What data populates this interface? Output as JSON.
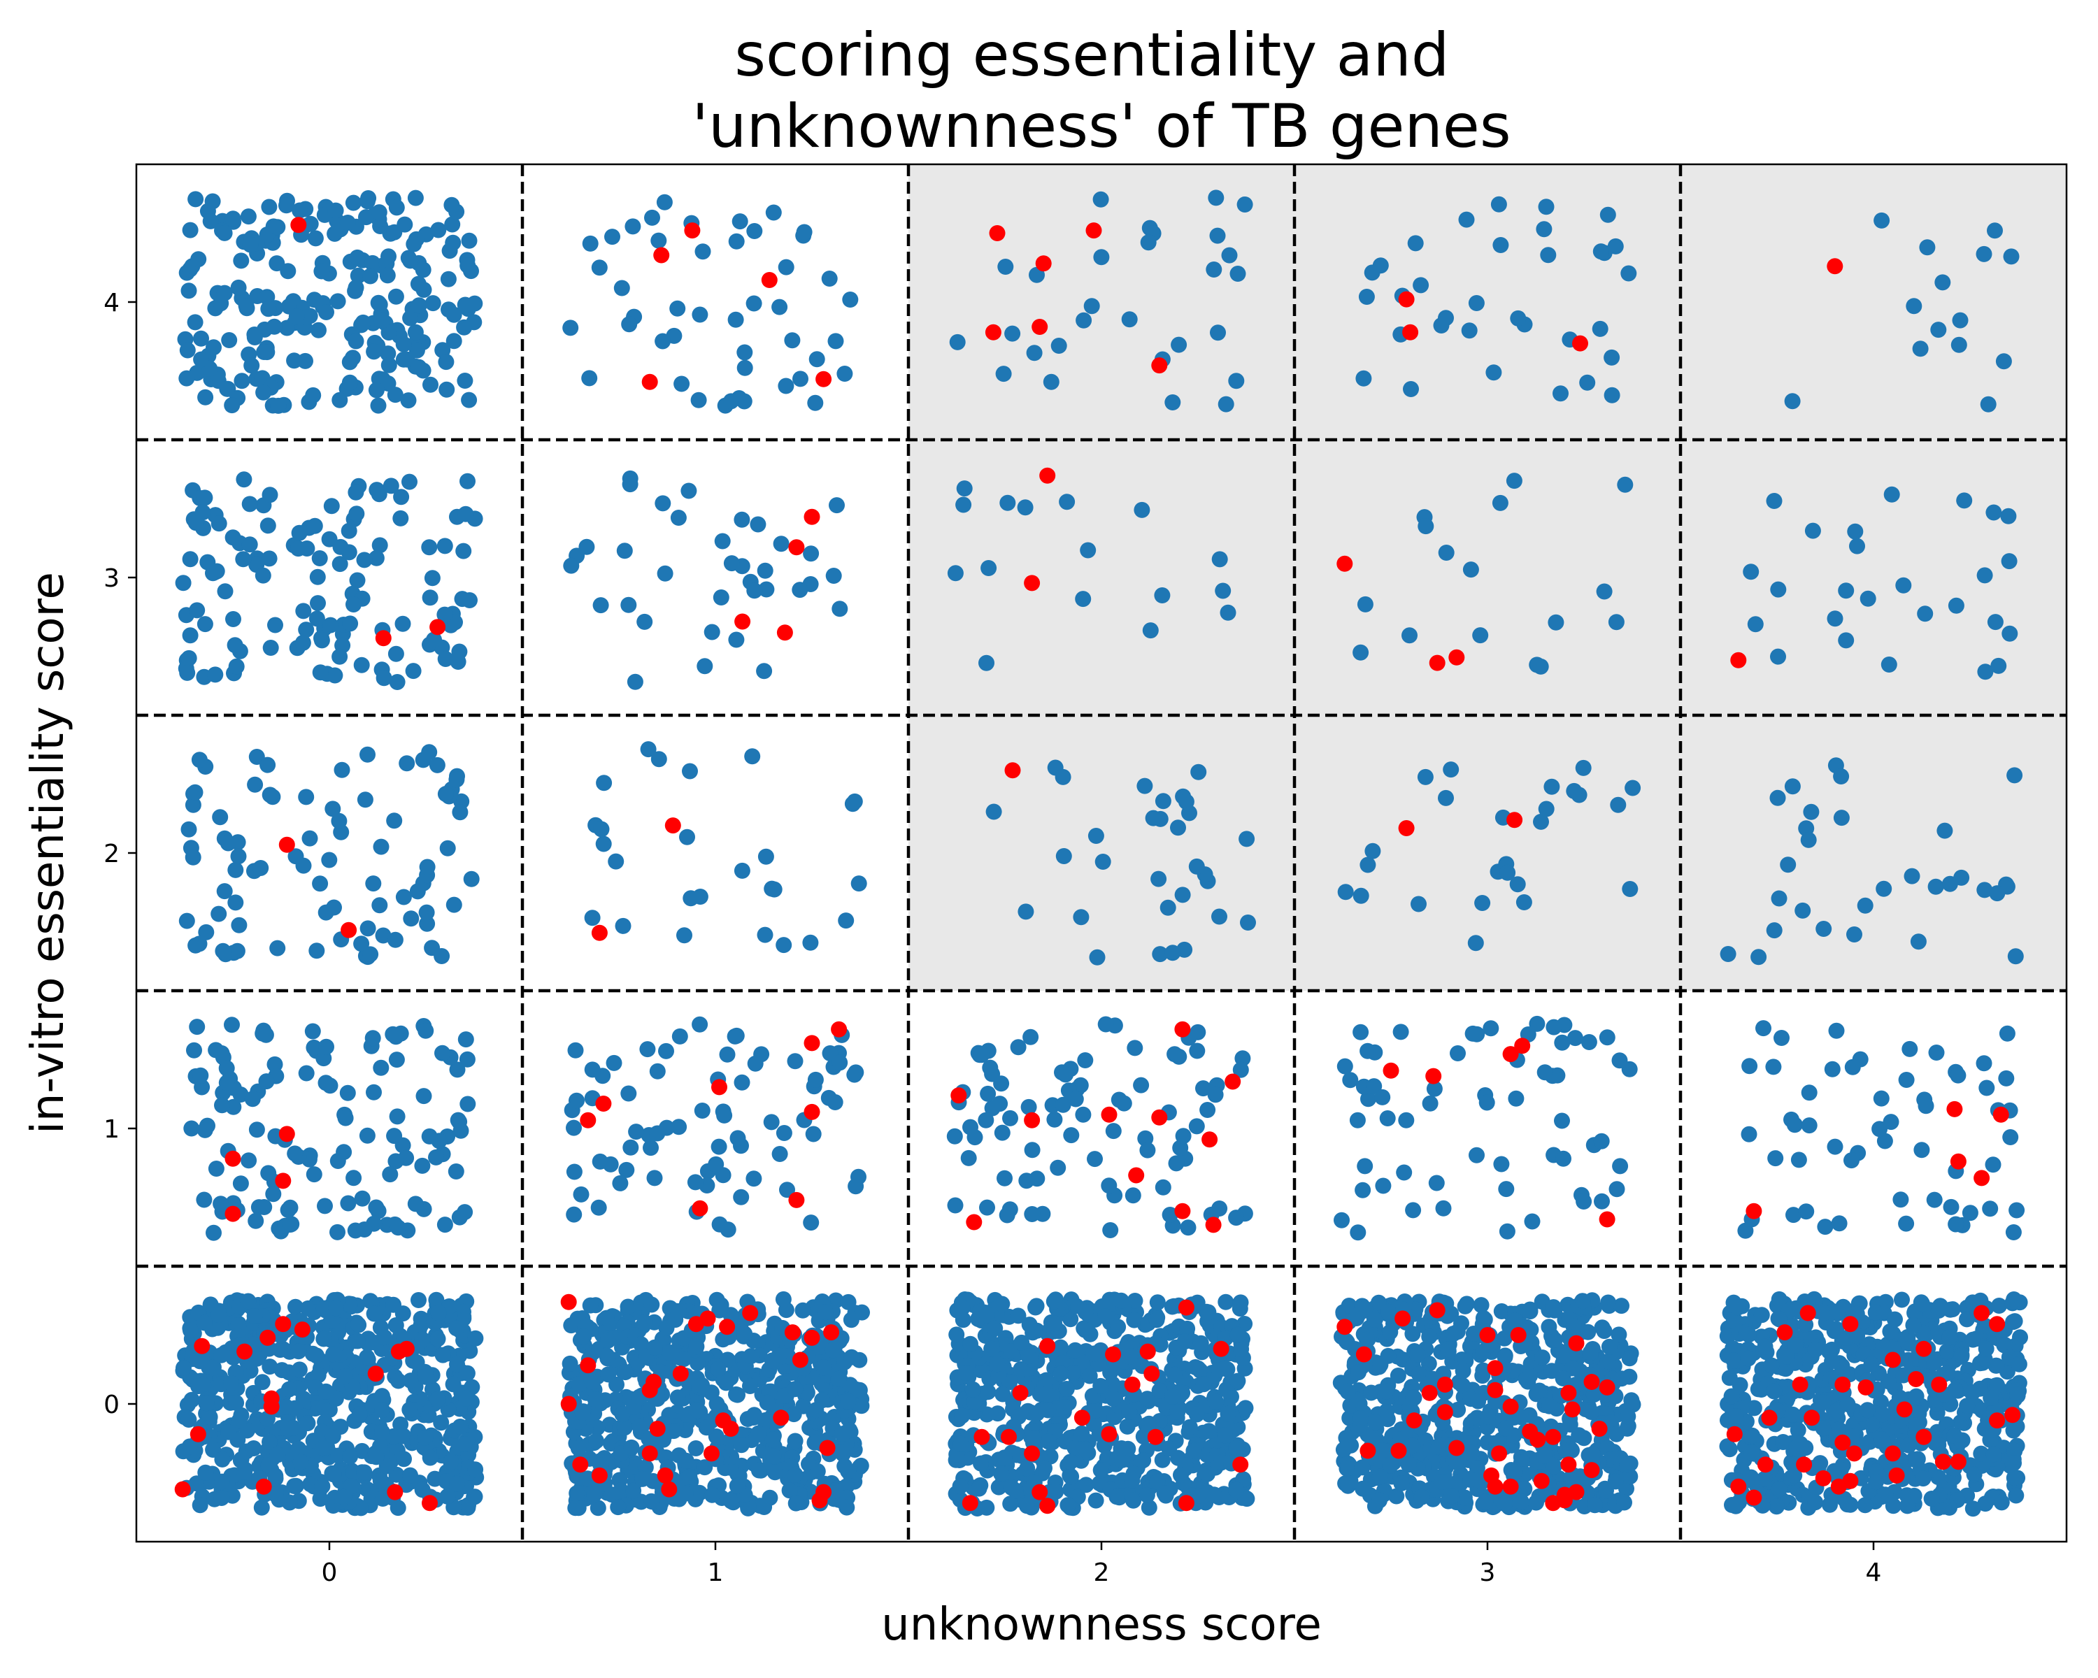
{
  "chart_data": {
    "type": "scatter",
    "title": "scoring essentiality and\n'unknownness' of TB genes",
    "title_lines": [
      "scoring essentiality and",
      "'unknownness' of TB genes"
    ],
    "xlabel": "unknownness score",
    "ylabel": "in-vitro essentiality score",
    "xlim": [
      -0.5,
      4.5
    ],
    "ylim": [
      -0.5,
      4.5
    ],
    "xticks": [
      0,
      1,
      2,
      3,
      4
    ],
    "yticks": [
      0,
      1,
      2,
      3,
      4
    ],
    "grid": false,
    "legend": "none",
    "separators": {
      "x": [
        0.5,
        1.5,
        2.5,
        3.5
      ],
      "y": [
        0.5,
        1.5,
        2.5,
        3.5
      ],
      "style": "dashed",
      "color": "#000000"
    },
    "shaded_region": {
      "x": [
        1.5,
        4.5
      ],
      "y": [
        1.5,
        4.5
      ],
      "color": "#e8e8e8"
    },
    "jitter": 0.38,
    "colors": {
      "default": "#1f77b4",
      "highlight": "#ff0000"
    },
    "cells": [
      {
        "x": 0,
        "y": 4,
        "n": 230,
        "highlight": [
          [
            -0.08,
            4.28
          ]
        ]
      },
      {
        "x": 1,
        "y": 4,
        "n": 45,
        "highlight": [
          [
            0.94,
            4.26
          ],
          [
            0.86,
            4.17
          ],
          [
            1.14,
            4.08
          ],
          [
            0.83,
            3.71
          ],
          [
            1.28,
            3.72
          ]
        ]
      },
      {
        "x": 2,
        "y": 4,
        "n": 28,
        "highlight": [
          [
            1.73,
            4.25
          ],
          [
            1.98,
            4.26
          ],
          [
            1.85,
            4.14
          ],
          [
            1.72,
            3.89
          ],
          [
            1.84,
            3.91
          ],
          [
            2.15,
            3.77
          ]
        ]
      },
      {
        "x": 3,
        "y": 4,
        "n": 33,
        "highlight": [
          [
            2.79,
            4.01
          ],
          [
            2.8,
            3.89
          ],
          [
            3.24,
            3.85
          ]
        ]
      },
      {
        "x": 4,
        "y": 4,
        "n": 14,
        "highlight": [
          [
            3.9,
            4.13
          ]
        ]
      },
      {
        "x": 0,
        "y": 3,
        "n": 125,
        "highlight": [
          [
            0.14,
            2.78
          ],
          [
            0.28,
            2.82
          ]
        ]
      },
      {
        "x": 1,
        "y": 3,
        "n": 35,
        "highlight": [
          [
            1.25,
            3.22
          ],
          [
            1.21,
            3.11
          ],
          [
            1.07,
            2.84
          ],
          [
            1.18,
            2.8
          ]
        ]
      },
      {
        "x": 2,
        "y": 3,
        "n": 16,
        "highlight": [
          [
            1.86,
            3.37
          ],
          [
            1.82,
            2.98
          ]
        ]
      },
      {
        "x": 3,
        "y": 3,
        "n": 16,
        "highlight": [
          [
            2.63,
            3.05
          ],
          [
            2.87,
            2.69
          ],
          [
            2.92,
            2.71
          ]
        ]
      },
      {
        "x": 4,
        "y": 3,
        "n": 26,
        "highlight": [
          [
            3.65,
            2.7
          ]
        ]
      },
      {
        "x": 0,
        "y": 2,
        "n": 85,
        "highlight": [
          [
            -0.11,
            2.03
          ],
          [
            0.05,
            1.72
          ]
        ]
      },
      {
        "x": 1,
        "y": 2,
        "n": 26,
        "highlight": [
          [
            0.89,
            2.1
          ],
          [
            0.7,
            1.71
          ]
        ]
      },
      {
        "x": 2,
        "y": 2,
        "n": 30,
        "highlight": [
          [
            1.77,
            2.3
          ]
        ]
      },
      {
        "x": 3,
        "y": 2,
        "n": 25,
        "highlight": [
          [
            2.79,
            2.09
          ],
          [
            3.07,
            2.12
          ]
        ]
      },
      {
        "x": 4,
        "y": 2,
        "n": 30,
        "highlight": []
      },
      {
        "x": 0,
        "y": 1,
        "n": 125,
        "highlight": [
          [
            -0.25,
            0.89
          ],
          [
            -0.11,
            0.98
          ],
          [
            -0.12,
            0.81
          ],
          [
            -0.25,
            0.69
          ]
        ]
      },
      {
        "x": 1,
        "y": 1,
        "n": 75,
        "highlight": [
          [
            1.32,
            1.36
          ],
          [
            1.25,
            1.31
          ],
          [
            1.01,
            1.15
          ],
          [
            0.71,
            1.09
          ],
          [
            0.67,
            1.03
          ],
          [
            1.25,
            1.06
          ],
          [
            1.21,
            0.74
          ],
          [
            0.96,
            0.71
          ]
        ]
      },
      {
        "x": 2,
        "y": 1,
        "n": 85,
        "highlight": [
          [
            2.21,
            1.36
          ],
          [
            2.34,
            1.17
          ],
          [
            1.63,
            1.12
          ],
          [
            1.82,
            1.03
          ],
          [
            2.02,
            1.05
          ],
          [
            2.15,
            1.04
          ],
          [
            2.28,
            0.96
          ],
          [
            2.09,
            0.83
          ],
          [
            2.21,
            0.7
          ],
          [
            1.67,
            0.66
          ],
          [
            2.29,
            0.65
          ]
        ]
      },
      {
        "x": 3,
        "y": 1,
        "n": 60,
        "highlight": [
          [
            3.09,
            1.3
          ],
          [
            3.06,
            1.27
          ],
          [
            2.75,
            1.21
          ],
          [
            2.86,
            1.19
          ],
          [
            3.31,
            0.67
          ]
        ]
      },
      {
        "x": 4,
        "y": 1,
        "n": 55,
        "highlight": [
          [
            4.21,
            1.07
          ],
          [
            4.33,
            1.05
          ],
          [
            4.22,
            0.88
          ],
          [
            4.28,
            0.82
          ],
          [
            3.69,
            0.7
          ]
        ]
      },
      {
        "x": 0,
        "y": 0,
        "n": 600,
        "highlight": [
          [
            -0.33,
            0.21
          ],
          [
            -0.22,
            0.19
          ],
          [
            -0.16,
            0.24
          ],
          [
            -0.12,
            0.29
          ],
          [
            -0.07,
            0.27
          ],
          [
            0.18,
            0.19
          ],
          [
            0.2,
            0.2
          ],
          [
            0.12,
            0.11
          ],
          [
            -0.15,
            0.02
          ],
          [
            -0.34,
            -0.11
          ],
          [
            -0.15,
            -0.01
          ],
          [
            -0.38,
            -0.31
          ],
          [
            -0.17,
            -0.3
          ],
          [
            0.17,
            -0.32
          ],
          [
            0.26,
            -0.36
          ]
        ]
      },
      {
        "x": 1,
        "y": 0,
        "n": 600,
        "highlight": [
          [
            0.62,
            0.37
          ],
          [
            0.67,
            0.14
          ],
          [
            0.84,
            0.08
          ],
          [
            0.91,
            0.11
          ],
          [
            0.95,
            0.29
          ],
          [
            0.98,
            0.31
          ],
          [
            1.03,
            0.28
          ],
          [
            1.09,
            0.33
          ],
          [
            1.2,
            0.26
          ],
          [
            1.25,
            0.24
          ],
          [
            1.3,
            0.26
          ],
          [
            1.22,
            0.16
          ],
          [
            0.62,
            0.0
          ],
          [
            0.83,
            0.05
          ],
          [
            1.17,
            -0.05
          ],
          [
            0.85,
            -0.09
          ],
          [
            1.02,
            -0.06
          ],
          [
            1.04,
            -0.09
          ],
          [
            0.83,
            -0.18
          ],
          [
            0.99,
            -0.18
          ],
          [
            0.65,
            -0.22
          ],
          [
            0.7,
            -0.26
          ],
          [
            0.87,
            -0.26
          ],
          [
            0.88,
            -0.31
          ],
          [
            1.29,
            -0.16
          ],
          [
            1.28,
            -0.32
          ],
          [
            1.27,
            -0.35
          ]
        ]
      },
      {
        "x": 2,
        "y": 0,
        "n": 600,
        "highlight": [
          [
            2.22,
            0.35
          ],
          [
            1.86,
            0.21
          ],
          [
            2.03,
            0.18
          ],
          [
            2.31,
            0.2
          ],
          [
            2.13,
            0.11
          ],
          [
            2.08,
            0.07
          ],
          [
            2.12,
            0.19
          ],
          [
            1.79,
            0.04
          ],
          [
            1.95,
            -0.05
          ],
          [
            1.69,
            -0.12
          ],
          [
            1.76,
            -0.12
          ],
          [
            2.02,
            -0.11
          ],
          [
            2.14,
            -0.12
          ],
          [
            1.82,
            -0.18
          ],
          [
            1.84,
            -0.32
          ],
          [
            2.36,
            -0.22
          ],
          [
            1.66,
            -0.36
          ],
          [
            1.86,
            -0.37
          ],
          [
            2.22,
            -0.36
          ]
        ]
      },
      {
        "x": 3,
        "y": 0,
        "n": 600,
        "highlight": [
          [
            2.63,
            0.28
          ],
          [
            2.78,
            0.31
          ],
          [
            2.87,
            0.34
          ],
          [
            3.0,
            0.25
          ],
          [
            3.08,
            0.25
          ],
          [
            3.23,
            0.22
          ],
          [
            2.68,
            0.18
          ],
          [
            3.02,
            0.13
          ],
          [
            2.89,
            0.07
          ],
          [
            2.85,
            0.04
          ],
          [
            3.02,
            0.05
          ],
          [
            3.27,
            0.08
          ],
          [
            3.31,
            0.06
          ],
          [
            3.21,
            0.04
          ],
          [
            3.22,
            -0.02
          ],
          [
            3.06,
            -0.01
          ],
          [
            2.89,
            -0.03
          ],
          [
            2.81,
            -0.06
          ],
          [
            3.11,
            -0.1
          ],
          [
            3.13,
            -0.13
          ],
          [
            3.17,
            -0.12
          ],
          [
            3.29,
            -0.09
          ],
          [
            2.69,
            -0.17
          ],
          [
            2.77,
            -0.17
          ],
          [
            2.92,
            -0.16
          ],
          [
            3.03,
            -0.18
          ],
          [
            3.21,
            -0.22
          ],
          [
            3.27,
            -0.24
          ],
          [
            3.01,
            -0.26
          ],
          [
            3.06,
            -0.3
          ],
          [
            3.14,
            -0.28
          ],
          [
            3.02,
            -0.3
          ],
          [
            3.2,
            -0.33
          ],
          [
            3.23,
            -0.32
          ],
          [
            3.17,
            -0.36
          ],
          [
            3.2,
            -0.35
          ]
        ]
      },
      {
        "x": 4,
        "y": 0,
        "n": 600,
        "highlight": [
          [
            4.28,
            0.33
          ],
          [
            4.32,
            0.29
          ],
          [
            3.83,
            0.33
          ],
          [
            3.77,
            0.26
          ],
          [
            3.94,
            0.29
          ],
          [
            4.13,
            0.2
          ],
          [
            4.05,
            0.16
          ],
          [
            4.11,
            0.09
          ],
          [
            4.17,
            0.07
          ],
          [
            3.98,
            0.06
          ],
          [
            3.92,
            0.07
          ],
          [
            3.81,
            0.07
          ],
          [
            4.08,
            -0.02
          ],
          [
            4.36,
            -0.04
          ],
          [
            4.32,
            -0.06
          ],
          [
            3.84,
            -0.05
          ],
          [
            3.73,
            -0.05
          ],
          [
            3.64,
            -0.11
          ],
          [
            3.92,
            -0.14
          ],
          [
            4.05,
            -0.18
          ],
          [
            3.95,
            -0.18
          ],
          [
            4.13,
            -0.12
          ],
          [
            4.22,
            -0.21
          ],
          [
            3.72,
            -0.22
          ],
          [
            3.82,
            -0.22
          ],
          [
            3.87,
            -0.27
          ],
          [
            3.94,
            -0.28
          ],
          [
            3.91,
            -0.3
          ],
          [
            4.06,
            -0.26
          ],
          [
            4.18,
            -0.21
          ],
          [
            3.65,
            -0.3
          ],
          [
            3.69,
            -0.34
          ]
        ]
      }
    ]
  }
}
